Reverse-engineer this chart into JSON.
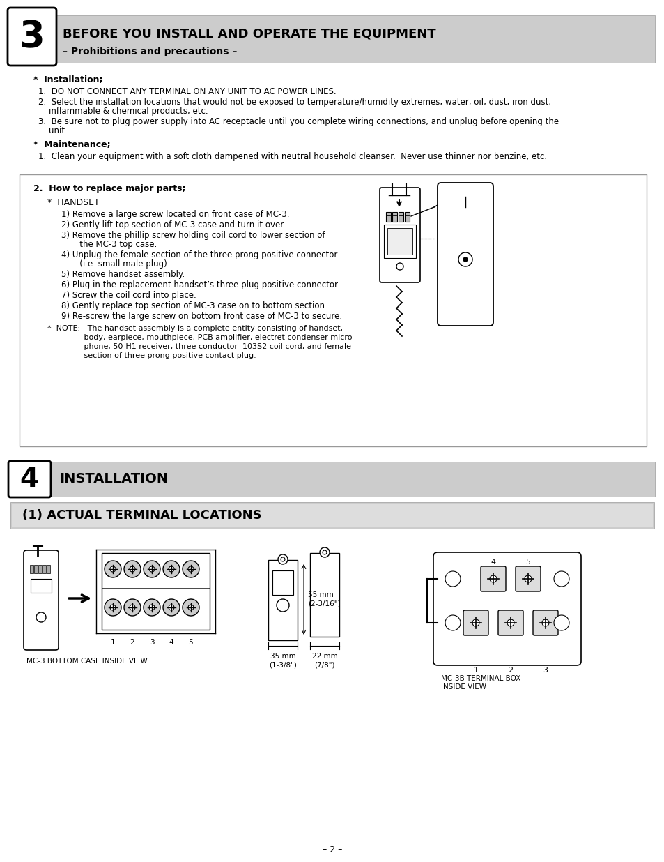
{
  "bg_color": "#ffffff",
  "header_bg": "#cccccc",
  "header_text": "BEFORE YOU INSTALL AND OPERATE THE EQUIPMENT",
  "header_sub": "– Prohibitions and precautions –",
  "section3_num": "3",
  "section4_num": "4",
  "section4_title": "INSTALLATION",
  "section5_title": "(1) ACTUAL TERMINAL LOCATIONS",
  "installation_header": "*  Installation;",
  "install_item1": "1.  DO NOT CONNECT ANY TERMINAL ON ANY UNIT TO AC POWER LINES.",
  "install_item2a": "2.  Select the installation locations that would not be exposed to temperature/humidity extremes, water, oil, dust, iron dust,",
  "install_item2b": "    inflammable & chemical products, etc.",
  "install_item3a": "3.  Be sure not to plug power supply into AC receptacle until you complete wiring connections, and unplug before opening the",
  "install_item3b": "    unit.",
  "maintenance_header": "*  Maintenance;",
  "maint_item1": "1.  Clean your equipment with a soft cloth dampened with neutral household cleanser.  Never use thinner nor benzine, etc.",
  "box_title": "2.  How to replace major parts;",
  "handset_label": "*  HANDSET",
  "step1": "1) Remove a large screw located on front case of MC-3.",
  "step2": "2) Gently lift top section of MC-3 case and turn it over.",
  "step3a": "3) Remove the phillip screw holding coil cord to lower section of",
  "step3b": "       the MC-3 top case.",
  "step4a": "4) Unplug the female section of the three prong positive connector",
  "step4b": "       (i.e. small male plug).",
  "step5": "5) Remove handset assembly.",
  "step6": "6) Plug in the replacement handset’s three plug positive connector.",
  "step7": "7) Screw the coil cord into place.",
  "step8": "8) Gently replace top section of MC-3 case on to bottom section.",
  "step9": "9) Re-screw the large screw on bottom front case of MC-3 to secure.",
  "note_line1": "*  NOTE:   The handset assembly is a complete entity consisting of handset,",
  "note_line2": "               body, earpiece, mouthpiece, PCB amplifier, electret condenser micro-",
  "note_line3": "               phone, 50-H1 receiver, three conductor  103S2 coil cord, and female",
  "note_line4": "               section of three prong positive contact plug.",
  "bottom_label1": "MC-3 BOTTOM CASE INSIDE VIEW",
  "bottom_label2a": "MC-3B TERMINAL BOX",
  "bottom_label2b": "INSIDE VIEW",
  "page_num": "– 2 –"
}
